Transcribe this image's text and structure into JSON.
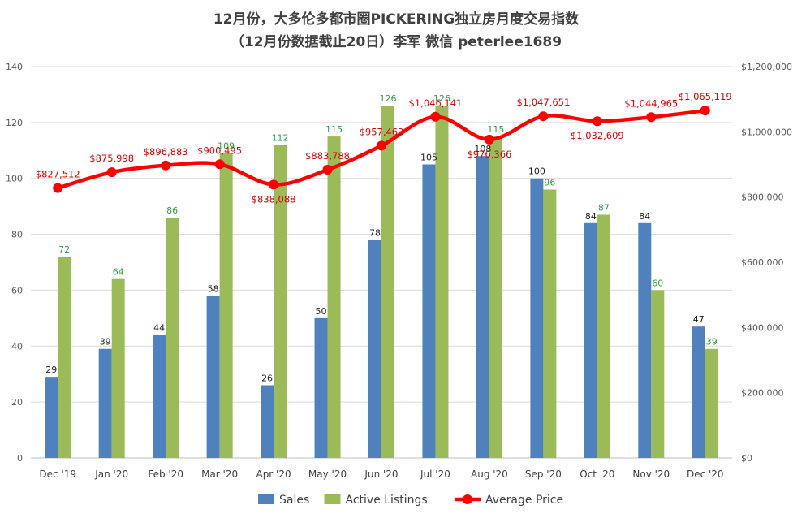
{
  "chart_data": {
    "type": "bar",
    "title_line1": "12月份，大多伦多都市圈PICKERING独立房月度交易指数",
    "title_line2": "（12月份数据截止20日）李军 微信 peterlee1689",
    "categories": [
      "Dec '19",
      "Jan '20",
      "Feb '20",
      "Mar '20",
      "Apr '20",
      "May '20",
      "Jun '20",
      "Jul '20",
      "Aug '20",
      "Sep '20",
      "Oct '20",
      "Nov '20",
      "Dec '20"
    ],
    "series": [
      {
        "name": "Sales",
        "kind": "bar",
        "axis": "left",
        "color": "#4f81bd",
        "label_color": "#1f1f1f",
        "values": [
          29,
          39,
          44,
          58,
          26,
          50,
          78,
          105,
          108,
          100,
          84,
          84,
          47
        ],
        "labels": [
          "29",
          "39",
          "44",
          "58",
          "26",
          "50",
          "78",
          "105",
          "108",
          "100",
          "84",
          "84",
          "47"
        ]
      },
      {
        "name": "Active Listings",
        "kind": "bar",
        "axis": "left",
        "color": "#9bbb59",
        "label_color": "#2e9e3e",
        "values": [
          72,
          64,
          86,
          109,
          112,
          115,
          126,
          126,
          115,
          96,
          87,
          60,
          39
        ],
        "labels": [
          "72",
          "64",
          "86",
          "109",
          "112",
          "115",
          "126",
          "126",
          "115",
          "96",
          "87",
          "60",
          "39"
        ]
      },
      {
        "name": "Average Price",
        "kind": "line",
        "axis": "right",
        "color": "#ff0000",
        "label_color": "#e00000",
        "values": [
          827512,
          875998,
          896883,
          900495,
          838088,
          883788,
          957463,
          1046141,
          976366,
          1047651,
          1032609,
          1044965,
          1065119
        ],
        "labels": [
          "$827,512",
          "$875,998",
          "$896,883",
          "$900,495",
          "$838,088",
          "$883,788",
          "$957,463",
          "$1,046,141",
          "$976,366",
          "$1,047,651",
          "$1,032,609",
          "$1,044,965",
          "$1,065,119"
        ]
      }
    ],
    "y_left": {
      "min": 0,
      "max": 140,
      "step": 20,
      "ticks": [
        "0",
        "20",
        "40",
        "60",
        "80",
        "100",
        "120",
        "140"
      ]
    },
    "y_right": {
      "min": 0,
      "max": 1200000,
      "step": 200000,
      "ticks": [
        "$0",
        "$200,000",
        "$400,000",
        "$600,000",
        "$800,000",
        "$1,000,000",
        "$1,200,000"
      ]
    },
    "grid": true,
    "legend_position": "bottom"
  }
}
